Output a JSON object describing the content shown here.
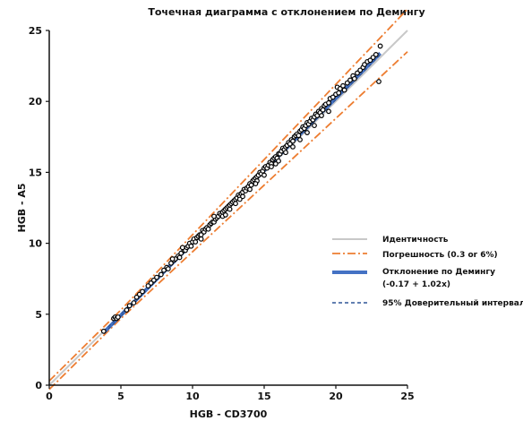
{
  "chart_data": {
    "type": "scatter",
    "title": "Точечная диаграмма с отклонением по Демингу",
    "xlabel": "HGB  - CD3700",
    "ylabel": "HGB  - A5",
    "xlim": [
      0,
      25
    ],
    "ylim": [
      0,
      25
    ],
    "xticks": [
      "0",
      "5",
      "10",
      "15",
      "20",
      "25"
    ],
    "yticks": [
      "0",
      "5",
      "10",
      "15",
      "20",
      "25"
    ],
    "grid": false,
    "legend_position": "right",
    "legend": [
      {
        "key": "identity",
        "label": "Идентичность",
        "color": "#c8c8c8"
      },
      {
        "key": "error",
        "label": "Погрешность (0.3 or 6%)",
        "color": "#ed7d31"
      },
      {
        "key": "deming",
        "label": "Отклонение по Демингу",
        "label2": "(-0.17 + 1.02x)",
        "color": "#4472c4"
      },
      {
        "key": "ci",
        "label": "95% Доверительный интервал",
        "color": "#2f5597"
      }
    ],
    "deming": {
      "intercept": -0.17,
      "slope": 1.02,
      "x_range": [
        3.8,
        23.1
      ]
    },
    "error_bounds": {
      "absolute": 0.3,
      "relative": 0.06
    },
    "points": [
      [
        3.8,
        3.8
      ],
      [
        4.5,
        4.7
      ],
      [
        4.6,
        4.8
      ],
      [
        4.7,
        4.7
      ],
      [
        4.8,
        4.8
      ],
      [
        5.4,
        5.3
      ],
      [
        5.6,
        5.6
      ],
      [
        5.9,
        5.8
      ],
      [
        6.1,
        6.2
      ],
      [
        6.3,
        6.4
      ],
      [
        6.5,
        6.6
      ],
      [
        6.9,
        7.0
      ],
      [
        7.1,
        7.2
      ],
      [
        7.3,
        7.4
      ],
      [
        7.5,
        7.6
      ],
      [
        7.8,
        7.8
      ],
      [
        8.0,
        8.1
      ],
      [
        8.2,
        8.3
      ],
      [
        8.3,
        8.2
      ],
      [
        8.5,
        8.6
      ],
      [
        8.7,
        8.8
      ],
      [
        8.8,
        8.9
      ],
      [
        9.0,
        9.1
      ],
      [
        9.1,
        9.0
      ],
      [
        9.2,
        9.3
      ],
      [
        9.4,
        9.5
      ],
      [
        9.5,
        9.5
      ],
      [
        9.6,
        9.7
      ],
      [
        9.7,
        9.8
      ],
      [
        9.8,
        10.0
      ],
      [
        9.9,
        9.8
      ],
      [
        10.0,
        10.1
      ],
      [
        10.1,
        10.3
      ],
      [
        10.2,
        10.1
      ],
      [
        10.3,
        10.4
      ],
      [
        10.4,
        10.5
      ],
      [
        10.5,
        10.6
      ],
      [
        10.6,
        10.6
      ],
      [
        10.7,
        10.9
      ],
      [
        10.8,
        10.8
      ],
      [
        10.9,
        11.0
      ],
      [
        11.0,
        11.1
      ],
      [
        11.1,
        11.0
      ],
      [
        11.2,
        11.3
      ],
      [
        11.3,
        11.4
      ],
      [
        11.4,
        11.5
      ],
      [
        11.5,
        11.5
      ],
      [
        11.6,
        11.7
      ],
      [
        11.7,
        11.8
      ],
      [
        11.8,
        11.9
      ],
      [
        11.9,
        12.1
      ],
      [
        12.0,
        12.0
      ],
      [
        12.1,
        12.2
      ],
      [
        12.2,
        12.3
      ],
      [
        12.3,
        12.4
      ],
      [
        12.4,
        12.5
      ],
      [
        12.5,
        12.6
      ],
      [
        12.6,
        12.7
      ],
      [
        12.7,
        12.8
      ],
      [
        12.8,
        12.9
      ],
      [
        12.9,
        13.0
      ],
      [
        13.0,
        13.1
      ],
      [
        13.1,
        13.2
      ],
      [
        13.2,
        13.4
      ],
      [
        13.3,
        13.3
      ],
      [
        13.4,
        13.5
      ],
      [
        13.5,
        13.6
      ],
      [
        13.6,
        13.8
      ],
      [
        13.7,
        13.7
      ],
      [
        13.8,
        13.9
      ],
      [
        13.9,
        14.0
      ],
      [
        14.0,
        14.2
      ],
      [
        14.1,
        14.1
      ],
      [
        14.2,
        14.4
      ],
      [
        14.3,
        14.5
      ],
      [
        14.4,
        14.6
      ],
      [
        14.5,
        14.7
      ],
      [
        14.6,
        14.8
      ],
      [
        14.7,
        15.0
      ],
      [
        14.8,
        14.9
      ],
      [
        14.9,
        15.1
      ],
      [
        15.0,
        15.3
      ],
      [
        15.1,
        15.4
      ],
      [
        15.2,
        15.3
      ],
      [
        15.3,
        15.5
      ],
      [
        15.4,
        15.7
      ],
      [
        15.5,
        15.6
      ],
      [
        15.6,
        15.9
      ],
      [
        15.7,
        16.0
      ],
      [
        15.8,
        16.1
      ],
      [
        15.9,
        16.0
      ],
      [
        16.0,
        16.3
      ],
      [
        16.1,
        16.3
      ],
      [
        16.2,
        16.5
      ],
      [
        16.3,
        16.7
      ],
      [
        16.4,
        16.6
      ],
      [
        16.5,
        16.8
      ],
      [
        16.6,
        16.9
      ],
      [
        16.7,
        17.1
      ],
      [
        16.8,
        17.0
      ],
      [
        16.9,
        17.3
      ],
      [
        17.0,
        17.2
      ],
      [
        17.1,
        17.5
      ],
      [
        17.2,
        17.6
      ],
      [
        17.3,
        17.7
      ],
      [
        17.4,
        17.6
      ],
      [
        17.5,
        17.9
      ],
      [
        17.6,
        18.0
      ],
      [
        17.7,
        18.2
      ],
      [
        17.8,
        18.1
      ],
      [
        17.9,
        18.3
      ],
      [
        18.0,
        18.5
      ],
      [
        18.1,
        18.4
      ],
      [
        18.2,
        18.6
      ],
      [
        18.3,
        18.8
      ],
      [
        18.4,
        18.7
      ],
      [
        18.5,
        18.9
      ],
      [
        18.6,
        19.1
      ],
      [
        18.7,
        19.0
      ],
      [
        18.8,
        19.3
      ],
      [
        18.9,
        19.2
      ],
      [
        19.0,
        19.5
      ],
      [
        19.1,
        19.4
      ],
      [
        19.2,
        19.7
      ],
      [
        19.3,
        19.8
      ],
      [
        19.5,
        19.9
      ],
      [
        19.6,
        20.2
      ],
      [
        19.8,
        20.3
      ],
      [
        20.0,
        20.5
      ],
      [
        20.1,
        21.0
      ],
      [
        20.2,
        20.6
      ],
      [
        20.3,
        20.9
      ],
      [
        20.5,
        21.1
      ],
      [
        20.6,
        20.8
      ],
      [
        20.8,
        21.3
      ],
      [
        21.0,
        21.5
      ],
      [
        21.2,
        21.8
      ],
      [
        21.3,
        21.6
      ],
      [
        21.5,
        22.0
      ],
      [
        21.7,
        22.2
      ],
      [
        21.9,
        22.4
      ],
      [
        22.0,
        22.6
      ],
      [
        22.2,
        22.8
      ],
      [
        22.4,
        22.9
      ],
      [
        22.6,
        23.1
      ],
      [
        22.8,
        23.3
      ],
      [
        23.0,
        21.4
      ],
      [
        23.1,
        23.9
      ],
      [
        8.6,
        8.9
      ],
      [
        9.3,
        9.7
      ],
      [
        10.6,
        10.3
      ],
      [
        11.5,
        11.9
      ],
      [
        12.1,
        11.9
      ],
      [
        12.6,
        12.4
      ],
      [
        13.0,
        12.8
      ],
      [
        13.5,
        13.3
      ],
      [
        14.0,
        13.8
      ],
      [
        14.5,
        14.4
      ],
      [
        15.0,
        14.8
      ],
      [
        15.5,
        15.4
      ],
      [
        16.0,
        15.8
      ],
      [
        16.5,
        16.4
      ],
      [
        17.0,
        16.8
      ],
      [
        17.5,
        17.3
      ],
      [
        18.0,
        17.8
      ],
      [
        18.5,
        18.3
      ],
      [
        19.0,
        19.0
      ],
      [
        19.5,
        19.3
      ],
      [
        12.3,
        12.0
      ],
      [
        13.3,
        13.1
      ],
      [
        14.4,
        14.2
      ],
      [
        15.8,
        15.6
      ]
    ]
  }
}
